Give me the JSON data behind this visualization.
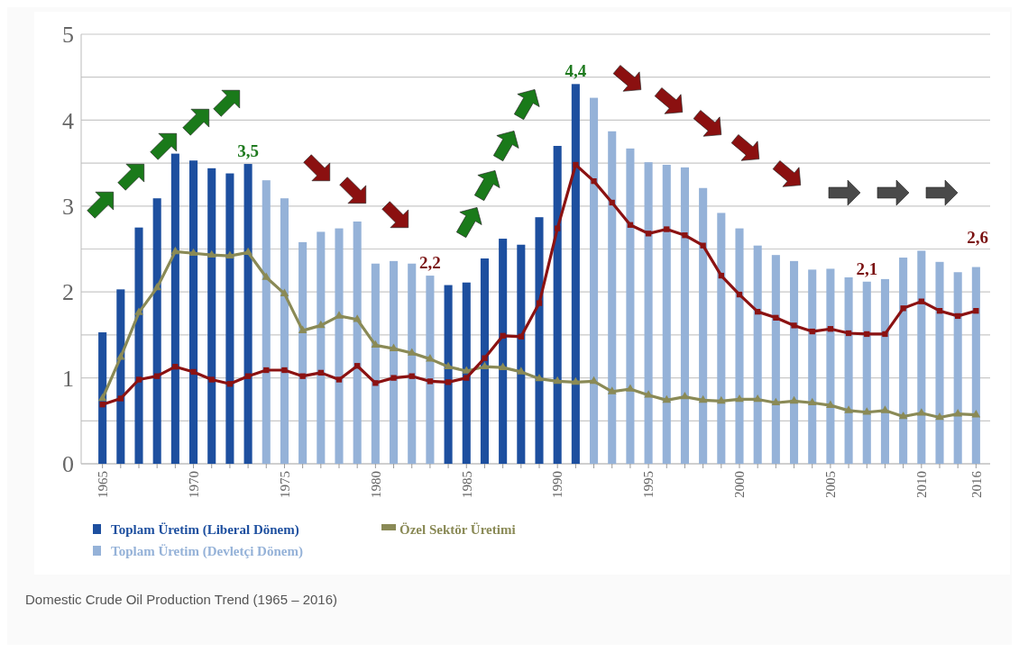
{
  "chart_data": {
    "type": "bar",
    "categories": [
      "1965",
      null,
      null,
      null,
      null,
      "1970",
      null,
      null,
      null,
      null,
      "1975",
      null,
      null,
      null,
      null,
      "1980",
      null,
      null,
      null,
      null,
      "1985",
      null,
      null,
      null,
      null,
      "1990",
      null,
      null,
      null,
      null,
      "1995",
      null,
      null,
      null,
      null,
      "2000",
      null,
      null,
      null,
      null,
      "2005",
      null,
      null,
      null,
      null,
      "2010",
      null,
      null,
      "2016"
    ],
    "series": [
      {
        "name": "Toplam Üretim (Liberal Dönem)",
        "color": "#1d4f9f",
        "values": [
          1.53,
          2.03,
          2.75,
          3.09,
          3.61,
          3.53,
          3.44,
          3.38,
          3.49,
          null,
          null,
          null,
          null,
          null,
          null,
          null,
          null,
          null,
          null,
          2.08,
          2.11,
          2.39,
          2.62,
          2.55,
          2.87,
          3.7,
          4.42,
          null,
          null,
          null,
          null,
          null,
          null,
          null,
          null,
          null,
          null,
          null,
          null,
          null,
          null,
          null,
          null,
          null,
          null,
          null,
          null,
          null,
          null
        ],
        "value_labels": [
          null,
          null,
          null,
          null,
          null,
          null,
          null,
          null,
          "3,5",
          null,
          null,
          null,
          null,
          null,
          null,
          null,
          null,
          null,
          null,
          null,
          null,
          null,
          null,
          null,
          null,
          null,
          "4,4",
          null,
          null,
          null,
          null,
          null,
          null,
          null,
          null,
          null,
          null,
          null,
          null,
          null,
          null,
          null,
          null,
          null,
          null,
          null,
          null,
          null,
          null
        ]
      },
      {
        "name": "Toplam Üretim (Devletçi Dönem)",
        "color": "#95b2d8",
        "values": [
          null,
          null,
          null,
          null,
          null,
          null,
          null,
          null,
          null,
          3.3,
          3.09,
          2.58,
          2.7,
          2.74,
          2.82,
          2.33,
          2.36,
          2.33,
          2.19,
          null,
          null,
          null,
          null,
          null,
          null,
          null,
          null,
          4.26,
          3.87,
          3.67,
          3.51,
          3.48,
          3.45,
          3.21,
          2.92,
          2.74,
          2.54,
          2.43,
          2.36,
          2.26,
          2.27,
          2.17,
          2.12,
          2.15,
          2.4,
          2.48,
          2.35,
          2.23,
          2.29
        ],
        "value_labels": [
          null,
          null,
          null,
          null,
          null,
          null,
          null,
          null,
          null,
          null,
          null,
          null,
          null,
          null,
          null,
          null,
          null,
          null,
          "2,2",
          null,
          null,
          null,
          null,
          null,
          null,
          null,
          null,
          null,
          null,
          null,
          null,
          null,
          null,
          null,
          null,
          null,
          null,
          null,
          null,
          null,
          null,
          null,
          "2,1",
          null,
          null,
          null,
          null,
          null,
          null
        ]
      },
      {
        "name": "Özel Sektör Üretimi",
        "type": "line",
        "color": "#8a8a56",
        "marker": "triangle",
        "values": [
          0.76,
          1.24,
          1.76,
          2.05,
          2.47,
          2.45,
          2.43,
          2.42,
          2.46,
          2.17,
          1.98,
          1.55,
          1.61,
          1.72,
          1.68,
          1.38,
          1.34,
          1.29,
          1.22,
          1.13,
          1.08,
          1.13,
          1.12,
          1.07,
          0.99,
          0.96,
          0.95,
          0.96,
          0.84,
          0.87,
          0.8,
          0.74,
          0.78,
          0.74,
          0.73,
          0.75,
          0.75,
          0.71,
          0.73,
          0.71,
          0.68,
          0.62,
          0.6,
          0.62,
          0.55,
          0.59,
          0.54,
          0.58,
          0.57
        ]
      },
      {
        "type": "line",
        "color": "#8b1212",
        "marker": "square",
        "values": [
          0.69,
          0.76,
          0.98,
          1.02,
          1.13,
          1.07,
          0.98,
          0.93,
          1.02,
          1.09,
          1.09,
          1.02,
          1.06,
          0.98,
          1.14,
          0.94,
          1.0,
          1.02,
          0.96,
          0.95,
          1.0,
          1.23,
          1.49,
          1.48,
          1.87,
          2.74,
          3.48,
          3.29,
          3.04,
          2.78,
          2.68,
          2.73,
          2.66,
          2.54,
          2.19,
          1.97,
          1.77,
          1.7,
          1.61,
          1.54,
          1.57,
          1.52,
          1.51,
          1.51,
          1.81,
          1.89,
          1.78,
          1.72,
          1.78
        ]
      }
    ],
    "ylim": [
      0,
      5
    ],
    "yticks": [
      0,
      {
        "value": 0.5,
        "label": null
      },
      1,
      {
        "value": 1.5,
        "label": null
      },
      2,
      {
        "value": 2.5,
        "label": null
      },
      3,
      {
        "value": 3.5,
        "label": null
      },
      4,
      {
        "value": 4.5,
        "label": null
      },
      5
    ],
    "grid": "y",
    "legend": "bottom",
    "line_style": "solid",
    "annotations": [
      "2,6",
      "Domestic Crude Oil Production Trend (1965 – 2016)"
    ]
  }
}
